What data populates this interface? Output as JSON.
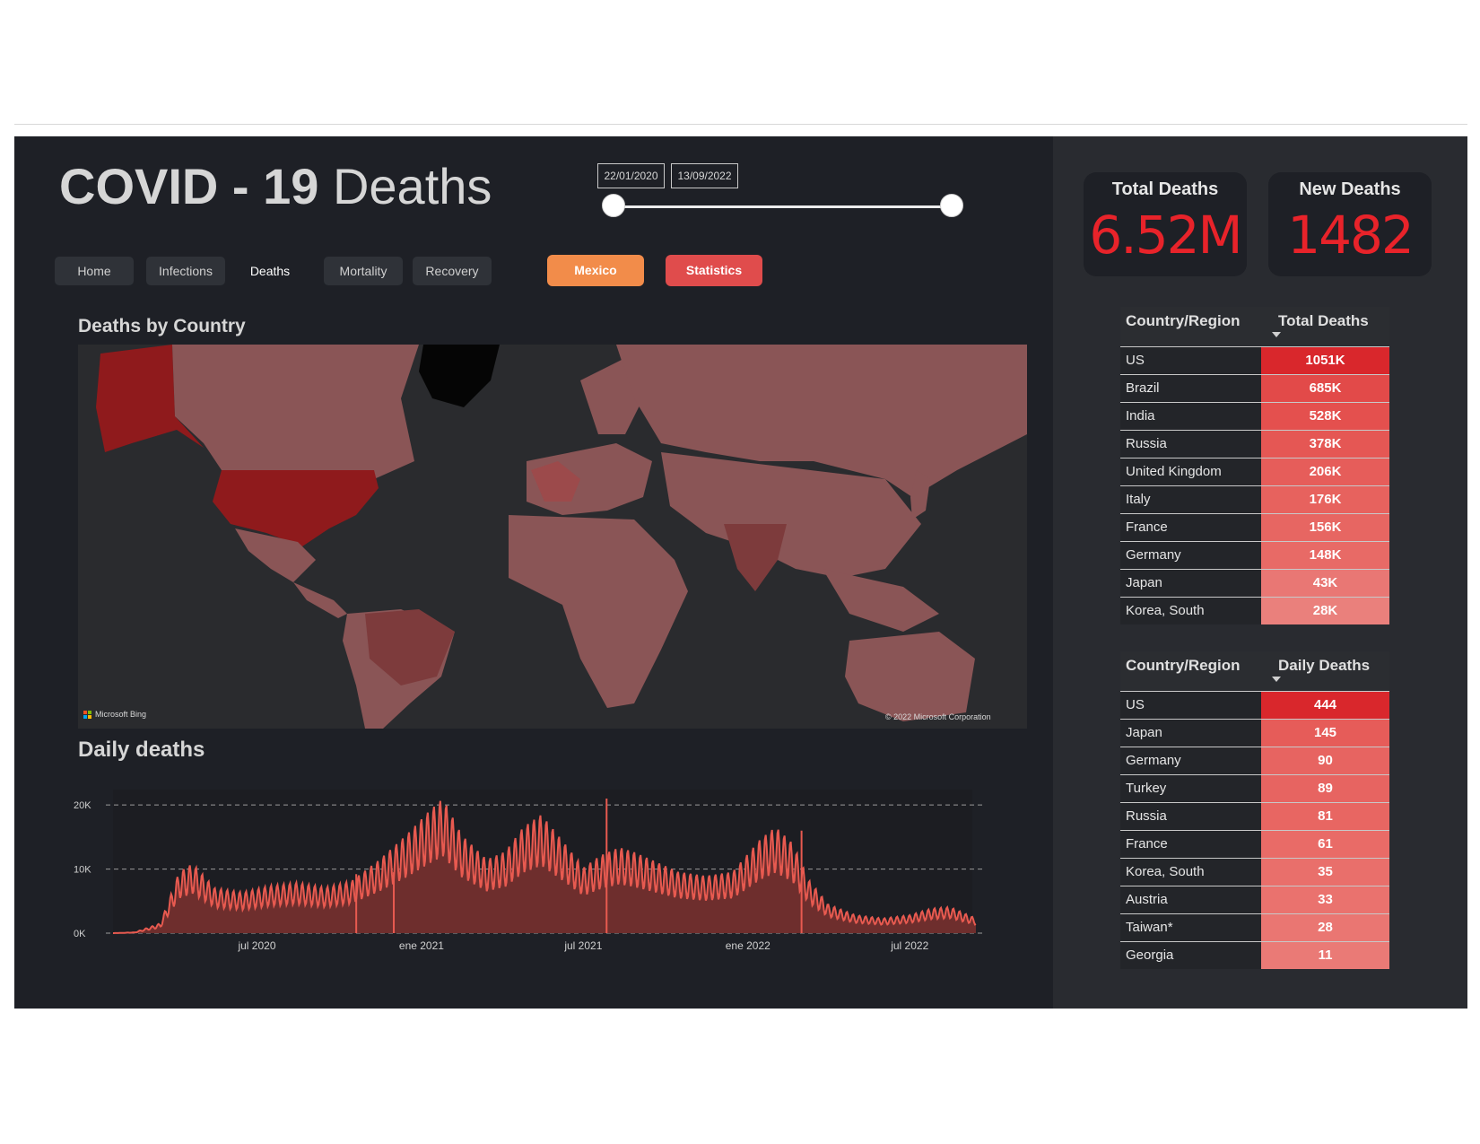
{
  "header": {
    "title_bold": "COVID - 19",
    "title_rest": "Deaths",
    "date_start": "22/01/2020",
    "date_end": "13/09/2022"
  },
  "nav": {
    "home": "Home",
    "infections": "Infections",
    "deaths": "Deaths",
    "mortality": "Mortality",
    "recovery": "Recovery",
    "mexico": "Mexico",
    "statistics": "Statistics"
  },
  "map": {
    "title": "Deaths by Country",
    "bing_label": "Microsoft Bing",
    "copyright": "© 2022 Microsoft Corporation"
  },
  "kpis": {
    "total_label": "Total Deaths",
    "total_value": "6.52M",
    "new_label": "New Deaths",
    "new_value": "1482"
  },
  "total_table": {
    "col1": "Country/Region",
    "col2": "Total Deaths",
    "rows": [
      {
        "country": "US",
        "value": "1051K"
      },
      {
        "country": "Brazil",
        "value": "685K"
      },
      {
        "country": "India",
        "value": "528K"
      },
      {
        "country": "Russia",
        "value": "378K"
      },
      {
        "country": "United Kingdom",
        "value": "206K"
      },
      {
        "country": "Italy",
        "value": "176K"
      },
      {
        "country": "France",
        "value": "156K"
      },
      {
        "country": "Germany",
        "value": "148K"
      },
      {
        "country": "Japan",
        "value": "43K"
      },
      {
        "country": "Korea, South",
        "value": "28K"
      }
    ]
  },
  "daily_table": {
    "col1": "Country/Region",
    "col2": "Daily Deaths",
    "rows": [
      {
        "country": "US",
        "value": "444"
      },
      {
        "country": "Japan",
        "value": "145"
      },
      {
        "country": "Germany",
        "value": "90"
      },
      {
        "country": "Turkey",
        "value": "89"
      },
      {
        "country": "Russia",
        "value": "81"
      },
      {
        "country": "France",
        "value": "61"
      },
      {
        "country": "Korea, South",
        "value": "35"
      },
      {
        "country": "Austria",
        "value": "33"
      },
      {
        "country": "Taiwan*",
        "value": "28"
      },
      {
        "country": "Georgia",
        "value": "11"
      }
    ]
  },
  "colors": {
    "accent_red": "#e8232a",
    "orange": "#f28c4a",
    "stat_red": "#e04c4c",
    "line": "#e85a50",
    "area": "#6e2e2d"
  },
  "chart_data": {
    "type": "area",
    "title": "Daily deaths",
    "xlabel": "",
    "ylabel": "",
    "yticks": [
      "0K",
      "10K",
      "20K"
    ],
    "ylim": [
      0,
      21000
    ],
    "xticks": [
      "jul 2020",
      "ene 2021",
      "jul 2021",
      "ene 2022",
      "jul 2022"
    ],
    "x": [
      "2020-01-22",
      "2020-02-15",
      "2020-03-15",
      "2020-04-05",
      "2020-04-20",
      "2020-05-15",
      "2020-06-15",
      "2020-07-15",
      "2020-08-15",
      "2020-09-15",
      "2020-10-15",
      "2020-11-15",
      "2020-12-15",
      "2021-01-10",
      "2021-01-25",
      "2021-02-15",
      "2021-03-15",
      "2021-04-05",
      "2021-04-25",
      "2021-05-15",
      "2021-06-10",
      "2021-07-01",
      "2021-07-20",
      "2021-08-10",
      "2021-08-25",
      "2021-09-15",
      "2021-10-15",
      "2021-11-15",
      "2021-12-15",
      "2022-01-15",
      "2022-02-01",
      "2022-02-20",
      "2022-03-10",
      "2022-04-01",
      "2022-05-01",
      "2022-06-01",
      "2022-07-01",
      "2022-07-25",
      "2022-08-15",
      "2022-09-13"
    ],
    "series": [
      {
        "values": [
          0,
          100,
          1200,
          7500,
          8500,
          5500,
          5000,
          5800,
          6200,
          5600,
          6400,
          9000,
          12000,
          15000,
          16500,
          12000,
          9000,
          10000,
          13000,
          14500,
          11000,
          8000,
          9500,
          10500,
          10000,
          9000,
          7500,
          7000,
          7500,
          11500,
          13000,
          11000,
          6500,
          3500,
          2200,
          1800,
          2200,
          3000,
          3200,
          1800
        ]
      }
    ]
  }
}
